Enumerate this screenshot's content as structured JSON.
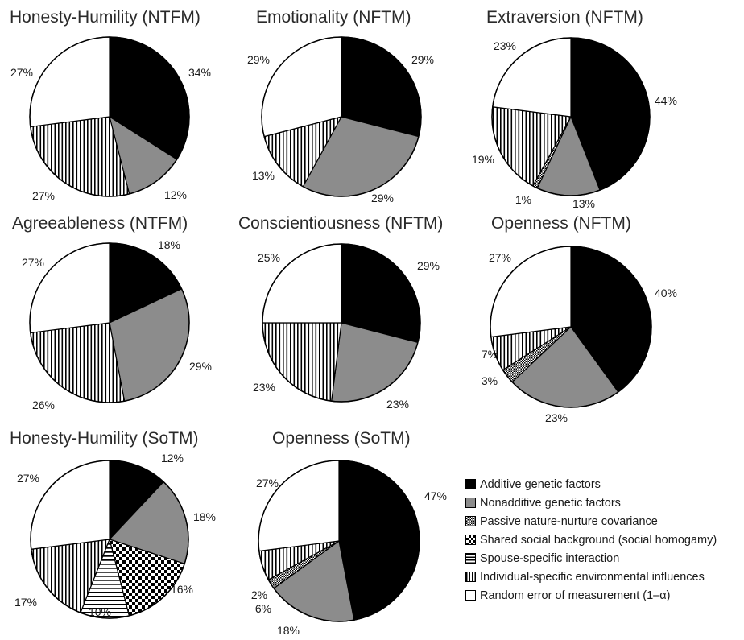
{
  "legend": {
    "items": [
      {
        "key": "additive",
        "label": "Additive genetic factors",
        "fill": "solid-black"
      },
      {
        "key": "nonadditive",
        "label": "Nonadditive genetic factors",
        "fill": "solid-gray"
      },
      {
        "key": "passive",
        "label": "Passive nature-nurture covariance",
        "fill": "dense-checker"
      },
      {
        "key": "shared",
        "label": "Shared social background (social homogamy)",
        "fill": "checkerboard"
      },
      {
        "key": "spouse",
        "label": "Spouse-specific interaction",
        "fill": "horizontal-stripes"
      },
      {
        "key": "individual",
        "label": "Individual-specific environmental influences",
        "fill": "vertical-stripes"
      },
      {
        "key": "error",
        "label": "Random error of measurement (1–α)",
        "fill": "white"
      }
    ]
  },
  "colors": {
    "additive": "#000000",
    "nonadditive": "#8c8c8c",
    "outline": "#000000",
    "background": "#ffffff"
  },
  "chart_data": [
    {
      "type": "pie",
      "title": "Honesty-Humility (NTFM)",
      "slices": [
        {
          "key": "additive",
          "value": 34,
          "label": "34%"
        },
        {
          "key": "nonadditive",
          "value": 12,
          "label": "12%"
        },
        {
          "key": "individual",
          "value": 27,
          "label": "27%"
        },
        {
          "key": "error",
          "value": 27,
          "label": "27%"
        }
      ]
    },
    {
      "type": "pie",
      "title": "Emotionality (NFTM)",
      "slices": [
        {
          "key": "additive",
          "value": 29,
          "label": "29%"
        },
        {
          "key": "nonadditive",
          "value": 29,
          "label": "29%"
        },
        {
          "key": "individual",
          "value": 13,
          "label": "13%"
        },
        {
          "key": "error",
          "value": 29,
          "label": "29%"
        }
      ]
    },
    {
      "type": "pie",
      "title": "Extraversion (NFTM)",
      "slices": [
        {
          "key": "additive",
          "value": 44,
          "label": "44%"
        },
        {
          "key": "nonadditive",
          "value": 13,
          "label": "13%"
        },
        {
          "key": "passive",
          "value": 1,
          "label": "1%"
        },
        {
          "key": "individual",
          "value": 19,
          "label": "19%"
        },
        {
          "key": "error",
          "value": 23,
          "label": "23%"
        }
      ]
    },
    {
      "type": "pie",
      "title": "Agreeableness (NTFM)",
      "slices": [
        {
          "key": "additive",
          "value": 18,
          "label": "18%"
        },
        {
          "key": "nonadditive",
          "value": 29,
          "label": "29%"
        },
        {
          "key": "individual",
          "value": 26,
          "label": "26%"
        },
        {
          "key": "error",
          "value": 27,
          "label": "27%"
        }
      ]
    },
    {
      "type": "pie",
      "title": "Conscientiousness (NFTM)",
      "slices": [
        {
          "key": "additive",
          "value": 29,
          "label": "29%"
        },
        {
          "key": "nonadditive",
          "value": 23,
          "label": "23%"
        },
        {
          "key": "individual",
          "value": 23,
          "label": "23%"
        },
        {
          "key": "error",
          "value": 25,
          "label": "25%"
        }
      ]
    },
    {
      "type": "pie",
      "title": "Openness (NFTM)",
      "slices": [
        {
          "key": "additive",
          "value": 40,
          "label": "40%"
        },
        {
          "key": "nonadditive",
          "value": 23,
          "label": "23%"
        },
        {
          "key": "passive",
          "value": 3,
          "label": "3%"
        },
        {
          "key": "individual",
          "value": 7,
          "label": "7%"
        },
        {
          "key": "error",
          "value": 27,
          "label": "27%"
        }
      ]
    },
    {
      "type": "pie",
      "title": "Honesty-Humility (SoTM)",
      "slices": [
        {
          "key": "additive",
          "value": 12,
          "label": "12%"
        },
        {
          "key": "nonadditive",
          "value": 18,
          "label": "18%"
        },
        {
          "key": "shared",
          "value": 16,
          "label": "16%"
        },
        {
          "key": "spouse",
          "value": 10,
          "label": "10%"
        },
        {
          "key": "individual",
          "value": 17,
          "label": "17%"
        },
        {
          "key": "error",
          "value": 27,
          "label": "27%"
        }
      ]
    },
    {
      "type": "pie",
      "title": "Openness (SoTM)",
      "slices": [
        {
          "key": "additive",
          "value": 47,
          "label": "47%"
        },
        {
          "key": "nonadditive",
          "value": 18,
          "label": "18%"
        },
        {
          "key": "passive",
          "value": 2,
          "label": "2%"
        },
        {
          "key": "individual",
          "value": 6,
          "label": "6%"
        },
        {
          "key": "error",
          "value": 27,
          "label": "27%"
        }
      ]
    }
  ]
}
